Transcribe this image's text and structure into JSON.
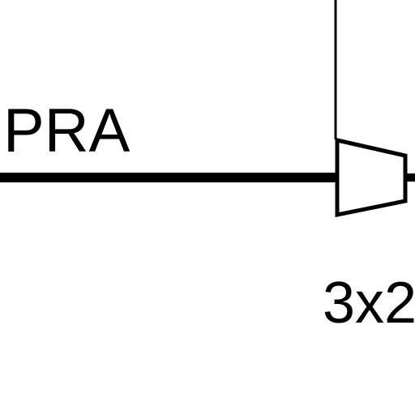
{
  "diagram": {
    "signal_label": "PRA",
    "component_label": "3x2",
    "colors": {
      "line": "#000000",
      "background": "#ffffff"
    }
  }
}
